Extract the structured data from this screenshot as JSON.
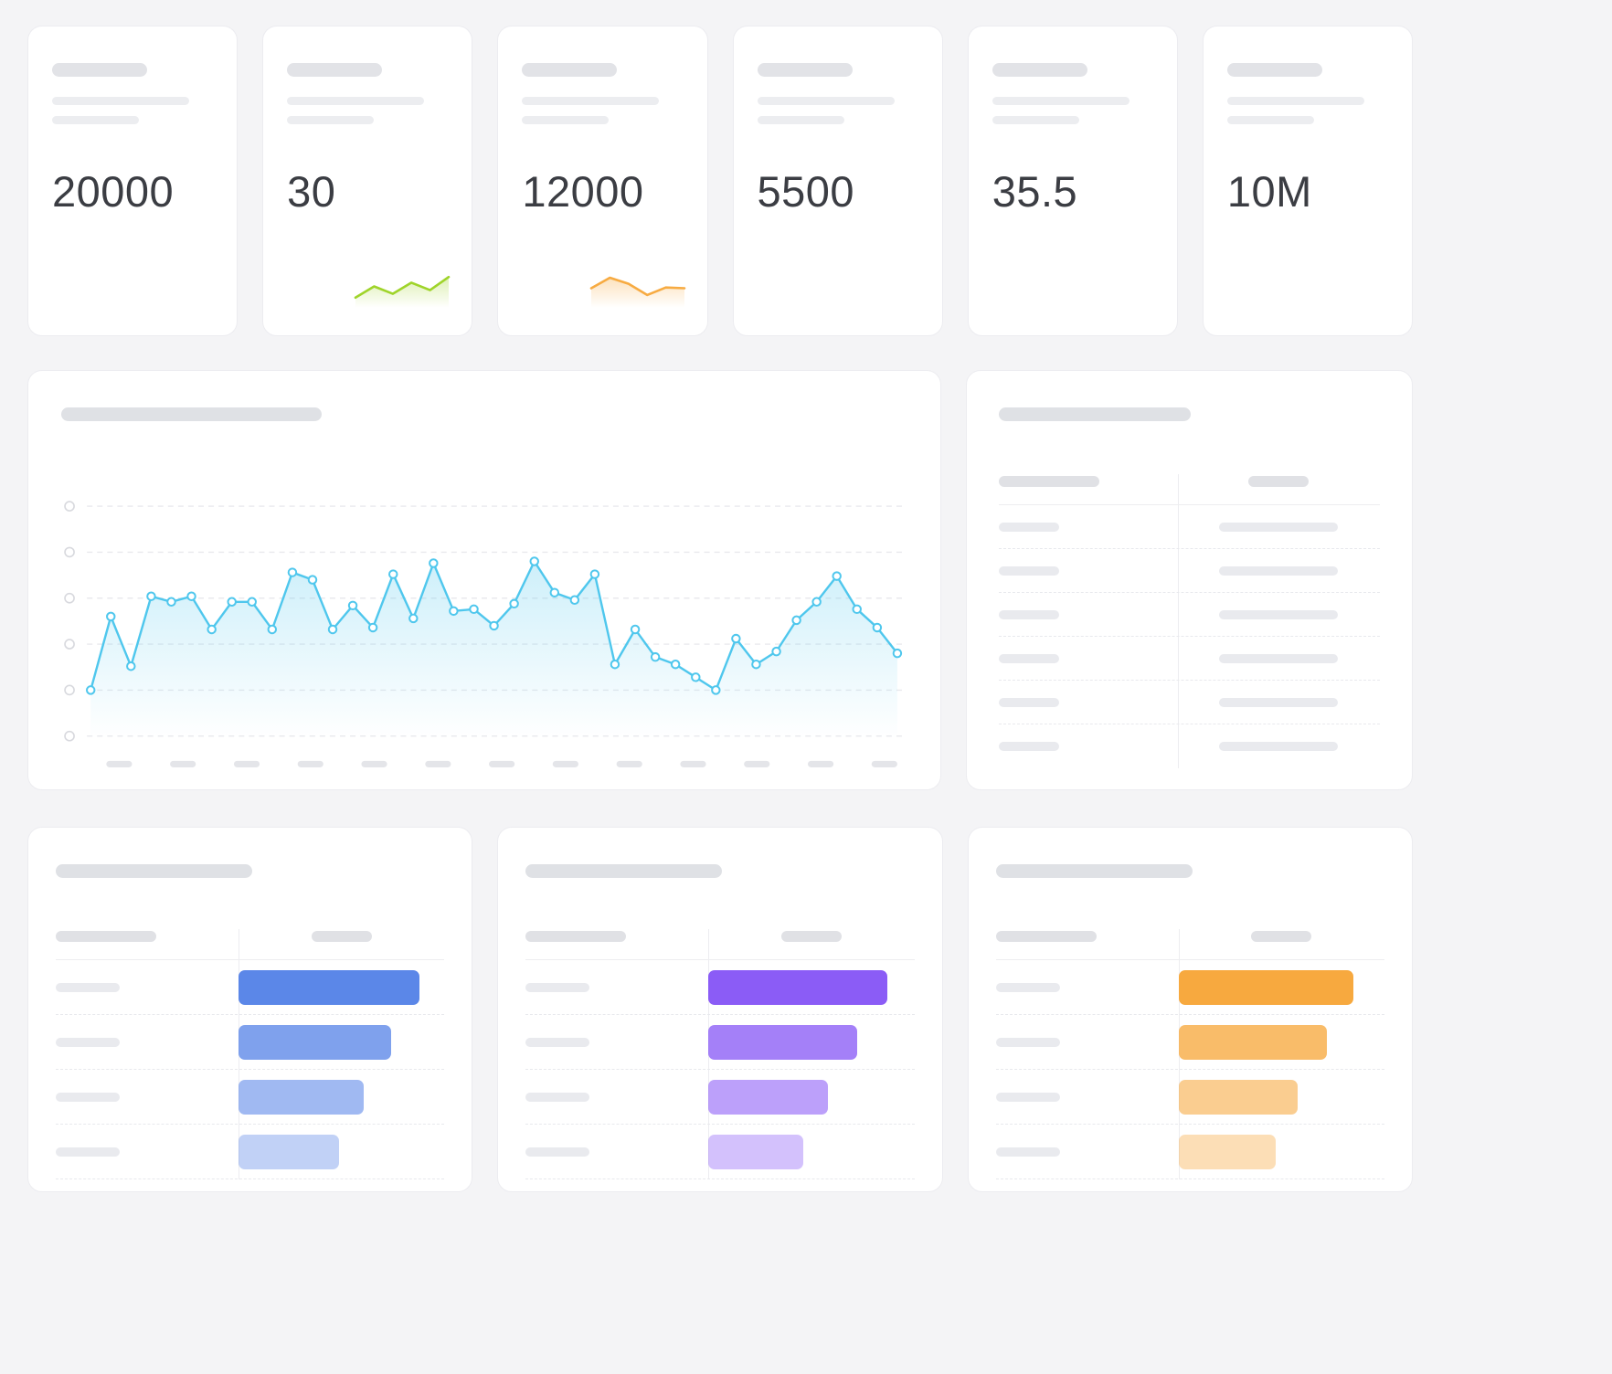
{
  "colors": {
    "background": "#f4f4f6",
    "card": "#ffffff",
    "skeleton_dark": "#dfe1e5",
    "skeleton_light": "#ecedf0",
    "value_text": "#3b3d43",
    "line_chart": "#4fc7ed",
    "spark_green": "#9fd42a",
    "spark_orange": "#f7ab42",
    "bars_blue": "#5b87e8",
    "bars_purple": "#8b5cf6",
    "bars_orange": "#f7a93f"
  },
  "stat_cards": [
    {
      "value": "20000",
      "sparkline": null
    },
    {
      "value": "30",
      "sparkline": "green_spark"
    },
    {
      "value": "12000",
      "sparkline": "orange_spark"
    },
    {
      "value": "5500",
      "sparkline": null
    },
    {
      "value": "35.5",
      "sparkline": null
    },
    {
      "value": "10M",
      "sparkline": null
    }
  ],
  "chart_data": [
    {
      "name": "main_line",
      "type": "line",
      "title": "",
      "color": "#4fc7ed",
      "marker": "open-circle",
      "grid": "horizontal-dashed",
      "legend": "none",
      "y_ticks": 6,
      "x_ticks": 13,
      "ylim": [
        0,
        100
      ],
      "values": [
        0,
        40,
        13,
        51,
        48,
        51,
        33,
        48,
        48,
        33,
        64,
        60,
        33,
        46,
        34,
        63,
        39,
        69,
        43,
        44,
        35,
        47,
        70,
        53,
        49,
        63,
        14,
        33,
        18,
        14,
        7,
        0,
        28,
        14,
        21,
        38,
        48,
        62,
        44,
        34,
        20
      ]
    },
    {
      "name": "green_spark",
      "type": "line",
      "title": "",
      "color": "#9fd42a",
      "ylim": [
        0,
        100
      ],
      "values": [
        25,
        55,
        35,
        65,
        45,
        80
      ]
    },
    {
      "name": "orange_spark",
      "type": "line",
      "title": "",
      "color": "#f7ab42",
      "ylim": [
        0,
        100
      ],
      "values": [
        50,
        78,
        62,
        32,
        52,
        50
      ]
    },
    {
      "name": "blue_bars",
      "type": "bar",
      "orientation": "horizontal",
      "title": "",
      "color": "#5b87e8",
      "unit": "percent-of-column-width",
      "values": [
        88,
        74,
        61,
        49
      ],
      "opacities": [
        1,
        0.78,
        0.58,
        0.38
      ]
    },
    {
      "name": "purple_bars",
      "type": "bar",
      "orientation": "horizontal",
      "title": "",
      "color": "#8b5cf6",
      "unit": "percent-of-column-width",
      "values": [
        87,
        72,
        58,
        46
      ],
      "opacities": [
        1,
        0.78,
        0.58,
        0.38
      ]
    },
    {
      "name": "orange_bars",
      "type": "bar",
      "orientation": "horizontal",
      "title": "",
      "color": "#f7a93f",
      "unit": "percent-of-column-width",
      "values": [
        85,
        72,
        58,
        47
      ],
      "opacities": [
        1,
        0.78,
        0.58,
        0.38
      ]
    }
  ]
}
